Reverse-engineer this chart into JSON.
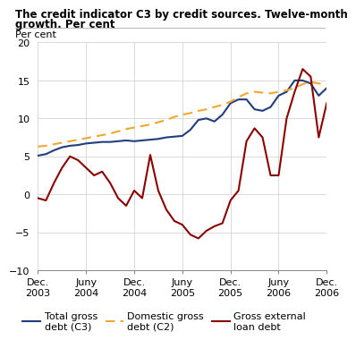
{
  "title_line1": "The credit indicator C3 by credit sources. Twelve-month",
  "title_line2": "growth. Per cent",
  "ylabel": "Per cent",
  "ylim": [
    -10,
    20
  ],
  "yticks": [
    -10,
    -5,
    0,
    5,
    10,
    15,
    20
  ],
  "background_color": "#ffffff",
  "x_labels": [
    "Dec.\n2003",
    "Juny\n2004",
    "Dec.\n2004",
    "Juny\n2005",
    "Dec.\n2005",
    "Juny\n2006",
    "Dec.\n2006"
  ],
  "x_positions": [
    0,
    6,
    12,
    18,
    24,
    30,
    36
  ],
  "total_gross_debt": {
    "label1": "Total gross",
    "label2": "debt (C3)",
    "color": "#1f3e7c",
    "linewidth": 1.5,
    "x": [
      0,
      1,
      2,
      3,
      4,
      5,
      6,
      7,
      8,
      9,
      10,
      11,
      12,
      13,
      14,
      15,
      16,
      17,
      18,
      19,
      20,
      21,
      22,
      23,
      24,
      25,
      26,
      27,
      28,
      29,
      30,
      31,
      32,
      33,
      34,
      35,
      36
    ],
    "y": [
      5.1,
      5.3,
      5.8,
      6.2,
      6.4,
      6.5,
      6.7,
      6.8,
      6.9,
      6.9,
      7.0,
      7.1,
      7.0,
      7.1,
      7.2,
      7.3,
      7.5,
      7.6,
      7.7,
      8.5,
      9.8,
      10.0,
      9.6,
      10.5,
      12.0,
      12.5,
      12.5,
      11.2,
      11.0,
      11.5,
      13.0,
      13.5,
      15.0,
      15.0,
      14.6,
      13.0,
      14.0
    ]
  },
  "domestic_gross_debt": {
    "label1": "Domestic gross",
    "label2": "debt (C2)",
    "color": "#f0a830",
    "linewidth": 1.5,
    "linestyle": "--",
    "x": [
      0,
      1,
      2,
      3,
      4,
      5,
      6,
      7,
      8,
      9,
      10,
      11,
      12,
      13,
      14,
      15,
      16,
      17,
      18,
      19,
      20,
      21,
      22,
      23,
      24,
      25,
      26,
      27,
      28,
      29,
      30,
      31,
      32,
      33,
      34,
      35,
      36
    ],
    "y": [
      6.3,
      6.4,
      6.6,
      6.8,
      7.0,
      7.2,
      7.4,
      7.6,
      7.8,
      8.0,
      8.3,
      8.6,
      8.8,
      9.0,
      9.2,
      9.5,
      9.8,
      10.2,
      10.5,
      10.7,
      11.0,
      11.2,
      11.5,
      11.8,
      12.2,
      12.8,
      13.3,
      13.5,
      13.4,
      13.3,
      13.5,
      13.7,
      14.0,
      14.5,
      14.8,
      14.6,
      14.5
    ]
  },
  "gross_external_loan": {
    "label1": "Gross external",
    "label2": "loan debt",
    "color": "#8b0000",
    "linewidth": 1.5,
    "x": [
      0,
      1,
      2,
      3,
      4,
      5,
      6,
      7,
      8,
      9,
      10,
      11,
      12,
      13,
      14,
      15,
      16,
      17,
      18,
      19,
      20,
      21,
      22,
      23,
      24,
      25,
      26,
      27,
      28,
      29,
      30,
      31,
      32,
      33,
      34,
      35,
      36
    ],
    "y": [
      -0.5,
      -0.8,
      1.5,
      3.5,
      5.0,
      4.5,
      3.5,
      2.5,
      3.0,
      1.5,
      -0.5,
      -1.5,
      0.5,
      -0.5,
      5.2,
      0.5,
      -2.0,
      -3.5,
      -4.0,
      -5.3,
      -5.8,
      -4.8,
      -4.2,
      -3.8,
      -0.8,
      0.5,
      7.0,
      8.7,
      7.5,
      2.5,
      2.5,
      10.0,
      13.5,
      16.5,
      15.5,
      7.5,
      12.0
    ]
  },
  "grid_color": "#cccccc",
  "tick_label_fontsize": 8,
  "legend_fontsize": 8
}
